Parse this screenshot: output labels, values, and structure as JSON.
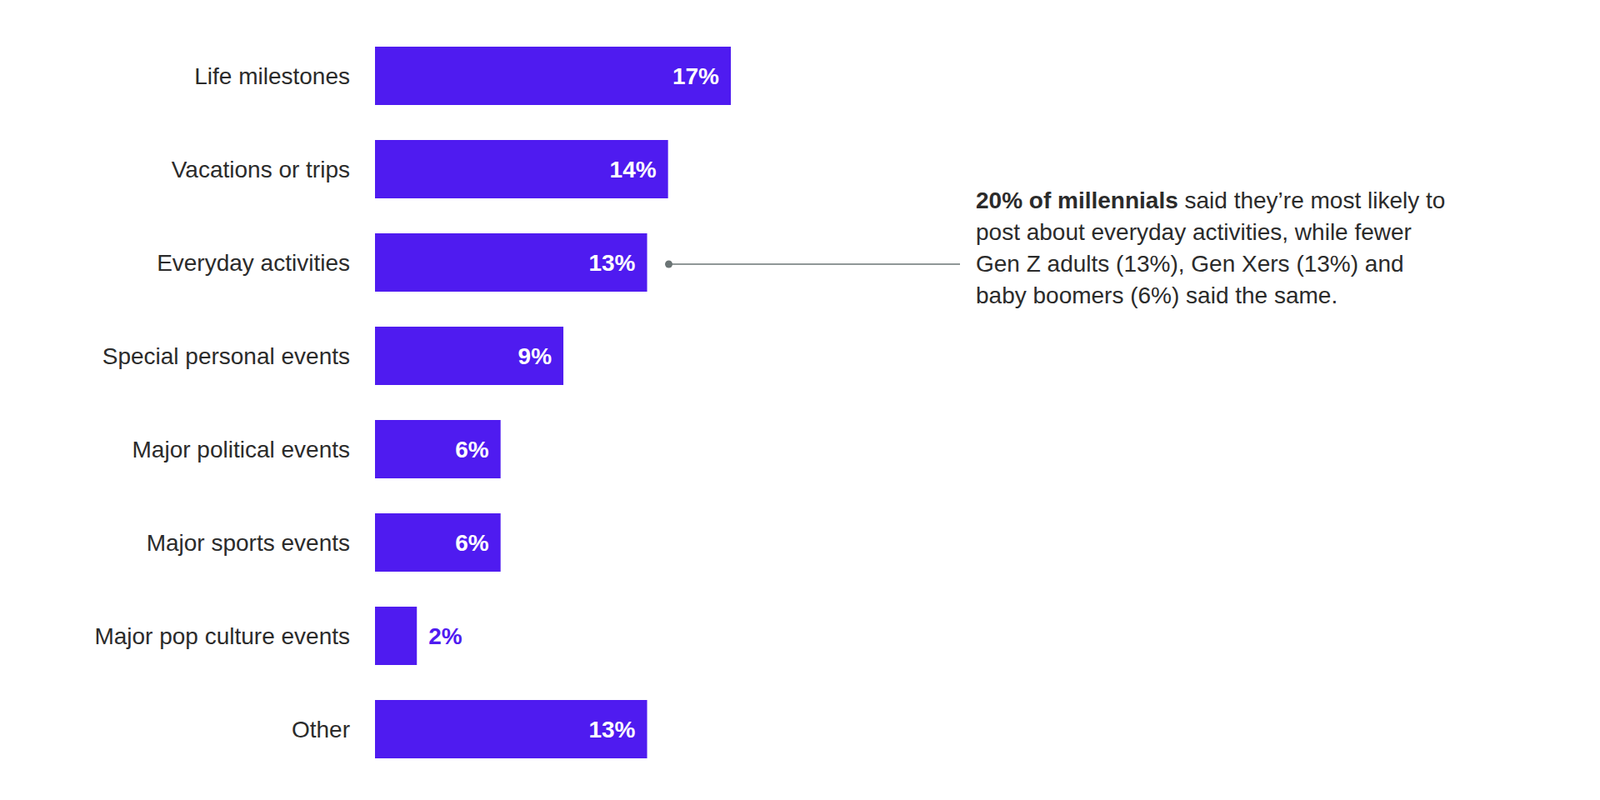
{
  "chart_data": {
    "type": "bar",
    "orientation": "horizontal",
    "categories": [
      "Life milestones",
      "Vacations or trips",
      "Everyday activities",
      "Special personal events",
      "Major political events",
      "Major sports events",
      "Major pop culture events",
      "Other"
    ],
    "values": [
      17,
      14,
      13,
      9,
      6,
      6,
      2,
      13
    ],
    "value_labels": [
      "17%",
      "14%",
      "13%",
      "9%",
      "6%",
      "6%",
      "2%",
      "13%"
    ],
    "color": "#4f1bf0",
    "xlim": [
      0,
      17
    ],
    "grid": false,
    "tick_labels": false,
    "data_labels": true,
    "annotations": [
      {
        "bold_text": "20% of millennials",
        "text": " said they’re most likely to post about everyday activities, while fewer Gen Z adults (13%), Gen Xers (13%) and baby boomers (6%) said the same."
      }
    ]
  }
}
